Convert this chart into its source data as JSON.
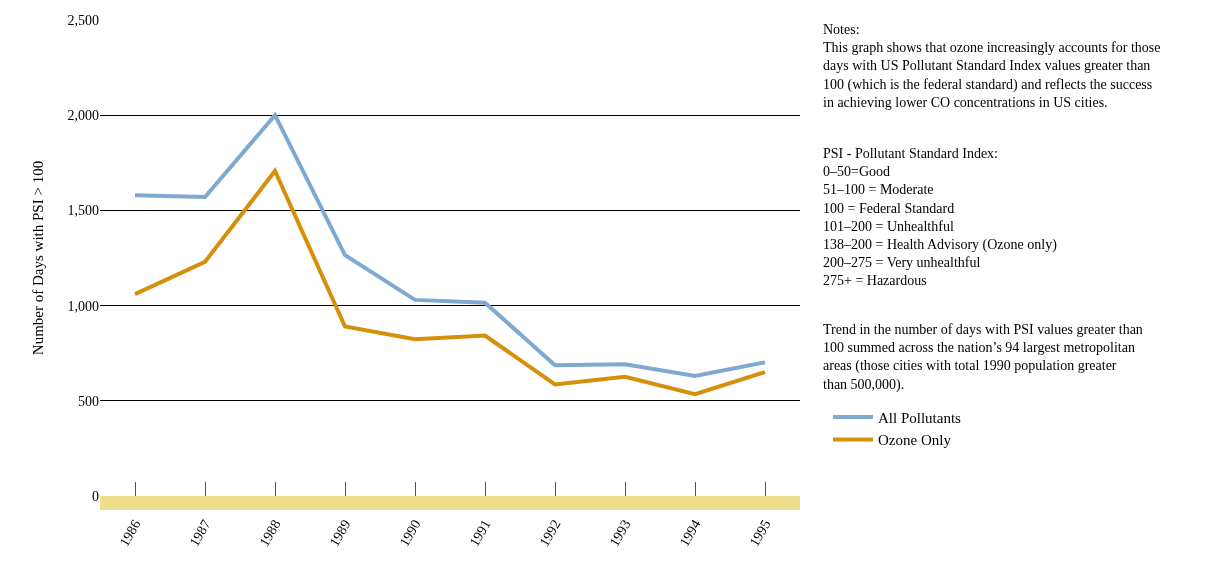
{
  "chart_data": {
    "type": "line",
    "ylabel": "Number of Days with PSI > 100",
    "categories": [
      "1986",
      "1987",
      "1988",
      "1989",
      "1990",
      "1991",
      "1992",
      "1993",
      "1994",
      "1995"
    ],
    "series": [
      {
        "name": "All Pollutants",
        "color": "#7fa9cf",
        "values": [
          1580,
          1570,
          2000,
          1265,
          1030,
          1015,
          687,
          692,
          630,
          702
        ]
      },
      {
        "name": "Ozone Only",
        "color": "#d68f0a",
        "values": [
          1060,
          1230,
          1707,
          890,
          823,
          843,
          586,
          626,
          535,
          651
        ]
      }
    ],
    "ylim": [
      0,
      2500
    ],
    "yticks": [
      {
        "value": 0,
        "label": "0"
      },
      {
        "value": 500,
        "label": "500"
      },
      {
        "value": 1000,
        "label": "1,000"
      },
      {
        "value": 1500,
        "label": "1,500"
      },
      {
        "value": 2000,
        "label": "2,000"
      },
      {
        "value": 2500,
        "label": "2,500"
      }
    ],
    "grid": "y",
    "legend": "right",
    "marker": "none",
    "line_style": "solid",
    "annotations": [
      "Notes:\nThis graph shows that ozone increasingly accounts for those\ndays with US Pollutant Standard Index values greater than\n100 (which is the federal standard) and reflects the success\nin achieving lower CO concentrations in US cities.",
      "PSI - Pollutant Standard Index:\n0–50=Good\n51–100 = Moderate\n100 = Federal Standard\n101–200 = Unhealthful\n138–200 = Health Advisory (Ozone only)\n200–275 = Very unhealthful\n275+ = Hazardous",
      "Trend in the number of days with PSI values greater than\n100 summed across the nation’s 94 largest metropolitan\nareas (those cities with total 1990 population greater\nthan 500,000)."
    ]
  }
}
